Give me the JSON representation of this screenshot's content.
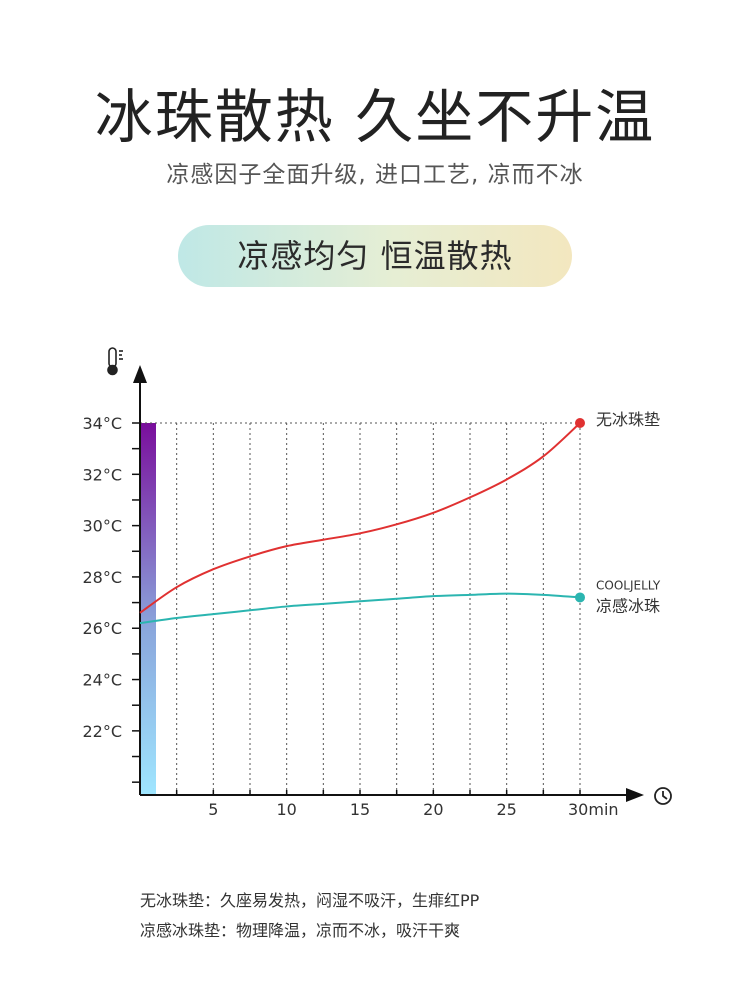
{
  "header": {
    "title": "冰珠散热 久坐不升温",
    "subtitle": "凉感因子全面升级, 进口工艺, 凉而不冰",
    "pill_text": "凉感均匀 恒温散热"
  },
  "chart_data": {
    "type": "line",
    "x_ticks": [
      "5",
      "10",
      "15",
      "20",
      "25",
      "30min"
    ],
    "y_ticks": [
      "22°C",
      "24°C",
      "26°C",
      "28°C",
      "30°C",
      "32°C",
      "34°C"
    ],
    "xlim": [
      0,
      30
    ],
    "ylim": [
      19.5,
      34
    ],
    "grid": "vertical dashed lines every 2.5 min, dashed top line at 34°C",
    "y_axis_icon": "thermometer-icon",
    "x_axis_icon": "clock-icon",
    "gradient_colors": [
      "#7a0e9c",
      "#8aa6dc",
      "#9fe6ff"
    ],
    "series": [
      {
        "name": "无冰珠垫",
        "color": "#e03131",
        "x": [
          0,
          2.5,
          5,
          7.5,
          10,
          12.5,
          15,
          17.5,
          20,
          22.5,
          25,
          27.5,
          30
        ],
        "y": [
          26.6,
          27.6,
          28.3,
          28.8,
          29.2,
          29.45,
          29.7,
          30.05,
          30.5,
          31.1,
          31.8,
          32.7,
          34.0
        ]
      },
      {
        "name_top": "COOLJELLY",
        "name": "凉感冰珠",
        "color": "#2bb5b0",
        "x": [
          0,
          2.5,
          5,
          7.5,
          10,
          12.5,
          15,
          17.5,
          20,
          22.5,
          25,
          27.5,
          30
        ],
        "y": [
          26.2,
          26.4,
          26.55,
          26.7,
          26.85,
          26.95,
          27.05,
          27.15,
          27.25,
          27.3,
          27.35,
          27.3,
          27.2
        ]
      }
    ]
  },
  "notes": {
    "line1": "无冰珠垫：久座易发热，闷湿不吸汗，生痱红PP",
    "line2": "凉感冰珠垫：物理降温，凉而不冰，吸汗干爽"
  }
}
